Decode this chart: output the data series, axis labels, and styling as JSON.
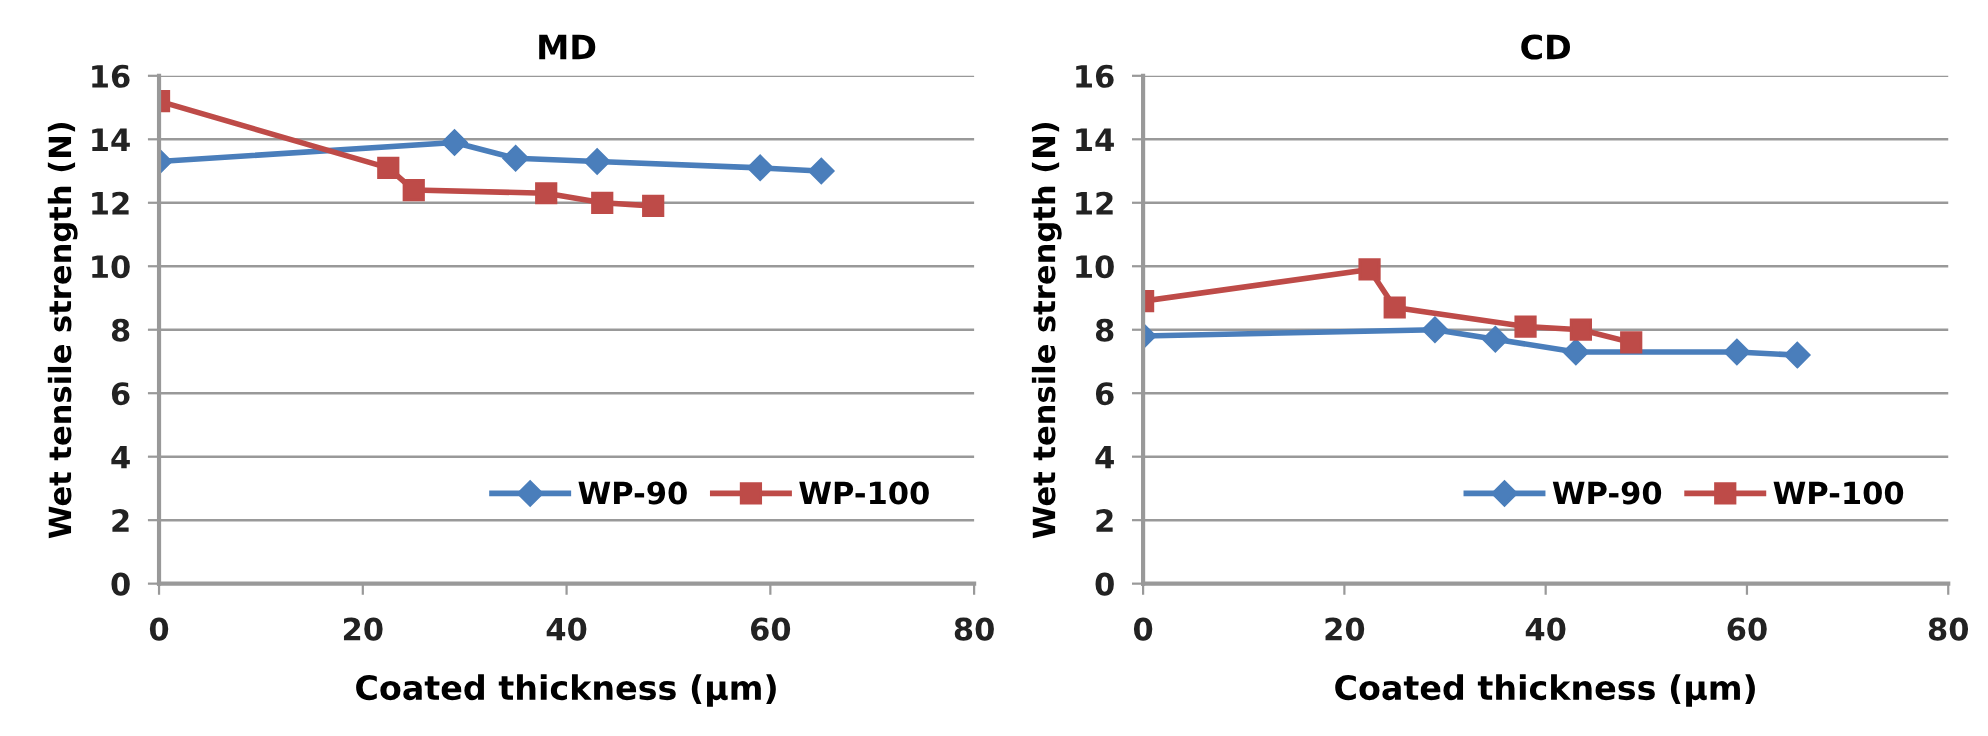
{
  "chart_data": [
    {
      "type": "line",
      "title": "MD",
      "xlabel": "Coated thickness (μm)",
      "ylabel": "Wet tensile strength (N)",
      "xlim": [
        0,
        80
      ],
      "xticks": [
        0,
        20,
        40,
        60,
        80
      ],
      "ylim": [
        0,
        16
      ],
      "yticks": [
        0,
        2,
        4,
        6,
        8,
        10,
        12,
        14,
        16
      ],
      "grid": "y",
      "legend": "bottom right",
      "series": [
        {
          "name": "WP-90",
          "color": "#4a7ebb",
          "marker": "diamond",
          "x": [
            0,
            29,
            35,
            43,
            59,
            65
          ],
          "values": [
            13.3,
            13.9,
            13.4,
            13.3,
            13.1,
            13.0
          ]
        },
        {
          "name": "WP-100",
          "color": "#be4b48",
          "marker": "square",
          "x": [
            0,
            22.5,
            25,
            38,
            43.5,
            48.5
          ],
          "values": [
            15.2,
            13.1,
            12.4,
            12.3,
            12.0,
            11.9
          ]
        }
      ]
    },
    {
      "type": "line",
      "title": "CD",
      "xlabel": "Coated thickness (μm)",
      "ylabel": "Wet tensile strength (N)",
      "xlim": [
        0,
        80
      ],
      "xticks": [
        0,
        20,
        40,
        60,
        80
      ],
      "ylim": [
        0,
        16
      ],
      "yticks": [
        0,
        2,
        4,
        6,
        8,
        10,
        12,
        14,
        16
      ],
      "grid": "y",
      "legend": "bottom right",
      "series": [
        {
          "name": "WP-90",
          "color": "#4a7ebb",
          "marker": "diamond",
          "x": [
            0,
            29,
            35,
            43,
            59,
            65
          ],
          "values": [
            7.8,
            8.0,
            7.7,
            7.3,
            7.3,
            7.2
          ]
        },
        {
          "name": "WP-100",
          "color": "#be4b48",
          "marker": "square",
          "x": [
            0,
            22.5,
            25,
            38,
            43.5,
            48.5
          ],
          "values": [
            8.9,
            9.9,
            8.7,
            8.1,
            8.0,
            7.6
          ]
        }
      ]
    }
  ]
}
